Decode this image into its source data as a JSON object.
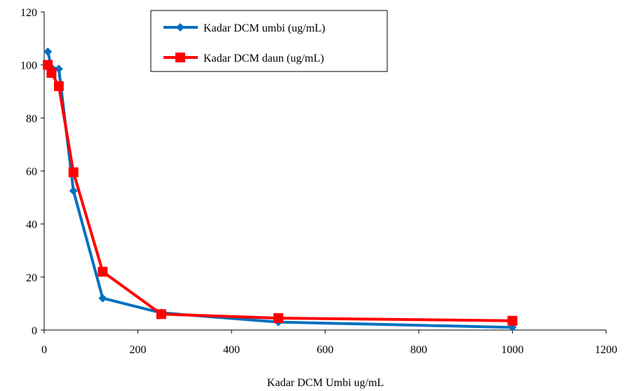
{
  "chart_data": {
    "type": "line",
    "title": "",
    "xlabel": "Kadar DCM Umbi ug/mL",
    "ylabel": "",
    "xlim": [
      0,
      1200
    ],
    "ylim": [
      0,
      120
    ],
    "x_ticks": [
      0,
      200,
      400,
      600,
      800,
      1000,
      1200
    ],
    "y_ticks": [
      0,
      20,
      40,
      60,
      80,
      100,
      120
    ],
    "grid": false,
    "legend_position": "top-center",
    "series": [
      {
        "name": "Kadar DCM umbi (ug/mL)",
        "color": "#0070C0",
        "marker": "diamond",
        "points": [
          {
            "x": 7.8,
            "y": 105
          },
          {
            "x": 15.6,
            "y": 99
          },
          {
            "x": 31.25,
            "y": 98.5
          },
          {
            "x": 62.5,
            "y": 52.5
          },
          {
            "x": 125,
            "y": 12
          },
          {
            "x": 250,
            "y": 6.5
          },
          {
            "x": 500,
            "y": 3
          },
          {
            "x": 1000,
            "y": 1
          }
        ]
      },
      {
        "name": "Kadar DCM daun (ug/mL)",
        "color": "#FF0000",
        "marker": "square",
        "points": [
          {
            "x": 7.8,
            "y": 100
          },
          {
            "x": 15.6,
            "y": 97
          },
          {
            "x": 31.25,
            "y": 92
          },
          {
            "x": 62.5,
            "y": 59.5
          },
          {
            "x": 125,
            "y": 22
          },
          {
            "x": 250,
            "y": 6
          },
          {
            "x": 500,
            "y": 4.5
          },
          {
            "x": 1000,
            "y": 3.5
          }
        ]
      }
    ]
  }
}
